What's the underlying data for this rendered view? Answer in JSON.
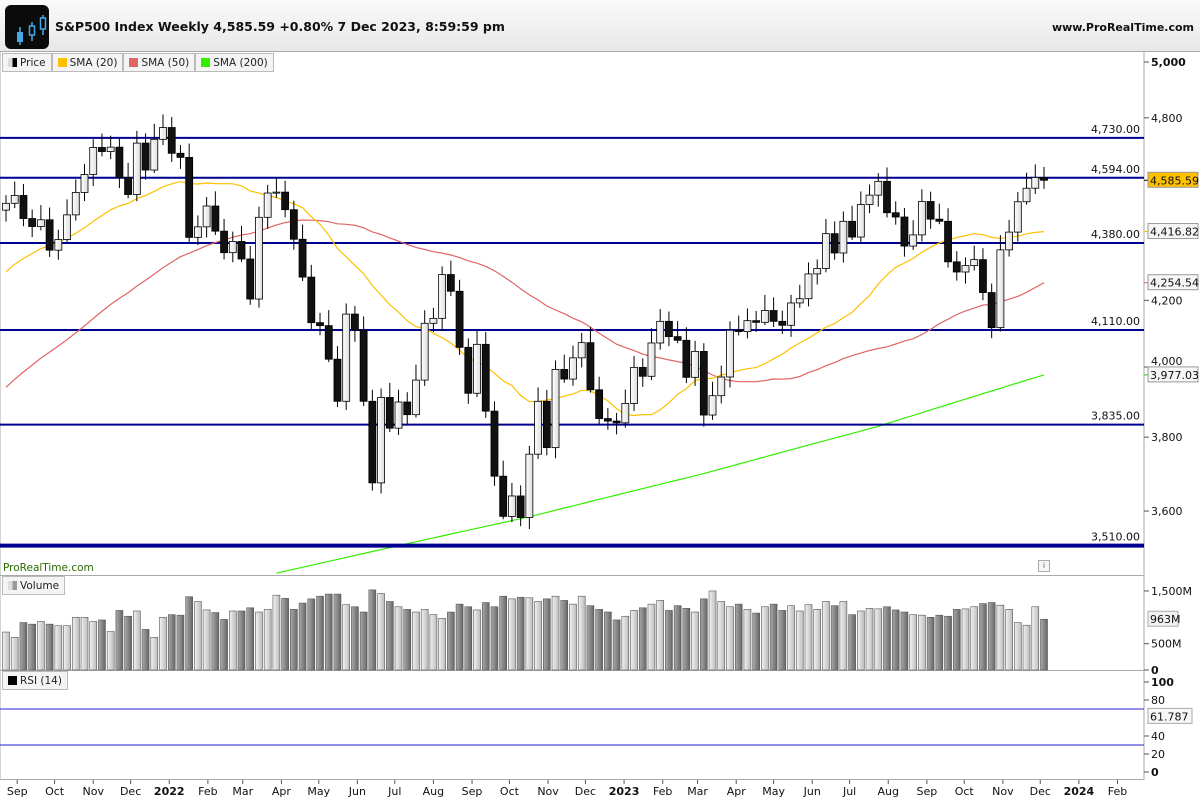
{
  "header": {
    "title": "S&P500 Index Weekly 4,585.59 +0.80% 7 Dec 2023, 8:59:59 pm",
    "site": "www.ProRealTime.com",
    "watermark": "ProRealTime.com",
    "logo_icon": "candlestick-logo-icon"
  },
  "legend": {
    "price": "Price",
    "sma20": "SMA (20)",
    "sma50": "SMA (50)",
    "sma200": "SMA (200)",
    "volume": "Volume",
    "rsi": "RSI (14)"
  },
  "colors": {
    "sma20": "#ffc000",
    "sma50": "#e06666",
    "sma200": "#33ee00",
    "hline": "#000090",
    "rsi_band": "#2222cc"
  },
  "chart_data": {
    "type": "candlestick",
    "title": "S&P500 Index Weekly",
    "scale": "log",
    "first_week": "2021-08-23",
    "closes": [
      4509,
      4535,
      4459,
      4433,
      4455,
      4357,
      4391,
      4471,
      4545,
      4605,
      4697,
      4683,
      4698,
      4595,
      4538,
      4712,
      4620,
      4725,
      4766,
      4677,
      4663,
      4398,
      4432,
      4500,
      4418,
      4349,
      4385,
      4329,
      4204,
      4463,
      4543,
      4546,
      4488,
      4392,
      4272,
      4132,
      4123,
      4023,
      3901,
      4158,
      4109,
      3901,
      3675,
      3912,
      3825,
      3899,
      3863,
      3962,
      4130,
      4145,
      4280,
      4228,
      4058,
      3924,
      4067,
      3873,
      3693,
      3586,
      3640,
      3583,
      3753,
      3901,
      3771,
      3993,
      3965,
      4027,
      4072,
      3934,
      3852,
      3845,
      3840,
      3895,
      3999,
      3973,
      4071,
      4136,
      4090,
      4079,
      3970,
      4046,
      3862,
      3917,
      3971,
      4109,
      4105,
      4138,
      4133,
      4169,
      4136,
      4124,
      4192,
      4205,
      4282,
      4299,
      4410,
      4348,
      4450,
      4399,
      4505,
      4536,
      4582,
      4478,
      4464,
      4370,
      4406,
      4515,
      4457,
      4450,
      4320,
      4288,
      4308,
      4327,
      4224,
      4117,
      4358,
      4415,
      4514,
      4559,
      4595,
      4585.59
    ],
    "volumes_millions": [
      720,
      620,
      900,
      870,
      920,
      870,
      840,
      840,
      1000,
      1000,
      920,
      950,
      730,
      1130,
      1020,
      1120,
      770,
      620,
      1000,
      1050,
      1040,
      1390,
      1300,
      1140,
      1090,
      960,
      1120,
      1120,
      1180,
      1100,
      1150,
      1420,
      1360,
      1150,
      1270,
      1350,
      1400,
      1440,
      1440,
      1240,
      1200,
      1100,
      1520,
      1450,
      1300,
      1200,
      1150,
      1100,
      1150,
      1050,
      980,
      1100,
      1250,
      1200,
      1140,
      1280,
      1200,
      1400,
      1350,
      1380,
      1370,
      1300,
      1350,
      1400,
      1320,
      1250,
      1400,
      1220,
      1150,
      1100,
      950,
      1020,
      1130,
      1180,
      1250,
      1320,
      1130,
      1220,
      1170,
      1100,
      1350,
      1500,
      1300,
      1200,
      1250,
      1150,
      1080,
      1200,
      1250,
      1130,
      1220,
      1120,
      1240,
      1150,
      1300,
      1220,
      1300,
      1050,
      1120,
      1170,
      1160,
      1200,
      1140,
      1100,
      1050,
      1040,
      1000,
      1040,
      1020,
      1150,
      1160,
      1200,
      1260,
      1280,
      1230,
      1150,
      900,
      850,
      1200,
      963
    ],
    "sma200_points": [
      [
        31,
        3440
      ],
      [
        60,
        3585
      ],
      [
        80,
        3700
      ],
      [
        100,
        3830
      ],
      [
        119,
        3977.03
      ]
    ],
    "hlines": [
      {
        "value": 4730,
        "label": "4,730.00"
      },
      {
        "value": 4594,
        "label": "4,594.00"
      },
      {
        "value": 4380,
        "label": "4,380.00"
      },
      {
        "value": 4110,
        "label": "4,110.00"
      },
      {
        "value": 3835,
        "label": "3,835.00"
      },
      {
        "value": 3510,
        "label": "3,510.00"
      }
    ],
    "price_ticks": [
      {
        "v": 5000,
        "l": "5,000"
      },
      {
        "v": 4800,
        "l": "4,800"
      },
      {
        "v": 4200,
        "l": "4,200"
      },
      {
        "v": 4000,
        "l": "4,000"
      },
      {
        "v": 3800,
        "l": "3,800"
      },
      {
        "v": 3600,
        "l": "3,600"
      }
    ],
    "last_markers": [
      {
        "v": 4585.59,
        "l": "4,585.59",
        "key": "price"
      },
      {
        "v": 4416.82,
        "l": "4,416.82",
        "key": "sma20"
      },
      {
        "v": 4254.54,
        "l": "4,254.54",
        "key": "sma50"
      },
      {
        "v": 3977.03,
        "l": "3,977.03",
        "key": "sma200"
      }
    ],
    "volume_ticks": [
      {
        "v": 1500,
        "l": "1,500M"
      },
      {
        "v": 500,
        "l": "500M"
      },
      {
        "v": 0,
        "l": "0"
      }
    ],
    "volume_last": "963M",
    "rsi_ticks": [
      {
        "v": 100,
        "l": "100"
      },
      {
        "v": 80,
        "l": "80"
      },
      {
        "v": 40,
        "l": "40"
      },
      {
        "v": 20,
        "l": "20"
      },
      {
        "v": 0,
        "l": "0"
      }
    ],
    "rsi_levels": [
      70,
      30
    ],
    "rsi_last": "61.787",
    "x_ticks": [
      {
        "d": "2021-09-01",
        "l": "Sep"
      },
      {
        "d": "2021-10-01",
        "l": "Oct"
      },
      {
        "d": "2021-11-01",
        "l": "Nov"
      },
      {
        "d": "2021-12-01",
        "l": "Dec"
      },
      {
        "d": "2022-01-01",
        "l": "2022",
        "bold": true
      },
      {
        "d": "2022-02-01",
        "l": "Feb"
      },
      {
        "d": "2022-03-01",
        "l": "Mar"
      },
      {
        "d": "2022-04-01",
        "l": "Apr"
      },
      {
        "d": "2022-05-01",
        "l": "May"
      },
      {
        "d": "2022-06-01",
        "l": "Jun"
      },
      {
        "d": "2022-07-01",
        "l": "Jul"
      },
      {
        "d": "2022-08-01",
        "l": "Aug"
      },
      {
        "d": "2022-09-01",
        "l": "Sep"
      },
      {
        "d": "2022-10-01",
        "l": "Oct"
      },
      {
        "d": "2022-11-01",
        "l": "Nov"
      },
      {
        "d": "2022-12-01",
        "l": "Dec"
      },
      {
        "d": "2023-01-01",
        "l": "2023",
        "bold": true
      },
      {
        "d": "2023-02-01",
        "l": "Feb"
      },
      {
        "d": "2023-03-01",
        "l": "Mar"
      },
      {
        "d": "2023-04-01",
        "l": "Apr"
      },
      {
        "d": "2023-05-01",
        "l": "May"
      },
      {
        "d": "2023-06-01",
        "l": "Jun"
      },
      {
        "d": "2023-07-01",
        "l": "Jul"
      },
      {
        "d": "2023-08-01",
        "l": "Aug"
      },
      {
        "d": "2023-09-01",
        "l": "Sep"
      },
      {
        "d": "2023-10-01",
        "l": "Oct"
      },
      {
        "d": "2023-11-01",
        "l": "Nov"
      },
      {
        "d": "2023-12-01",
        "l": "Dec"
      },
      {
        "d": "2024-01-01",
        "l": "2024",
        "bold": true
      },
      {
        "d": "2024-02-01",
        "l": "Feb"
      }
    ]
  }
}
